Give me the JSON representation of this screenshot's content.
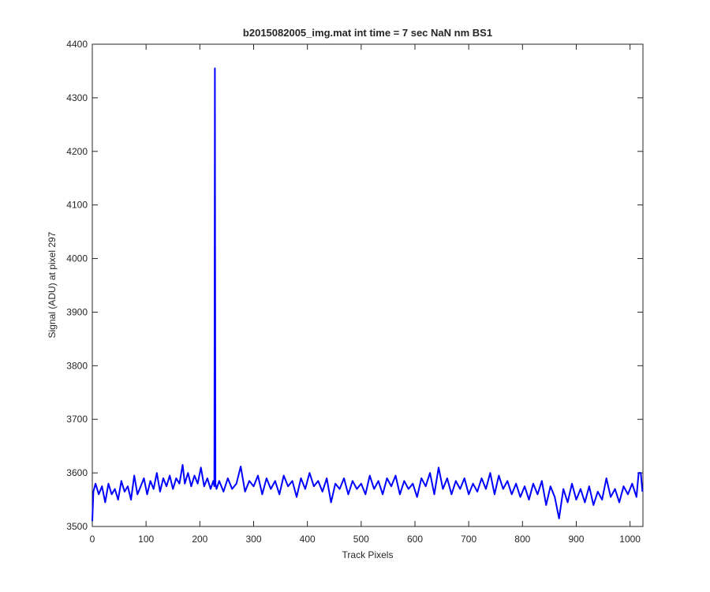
{
  "chart_data": {
    "type": "line",
    "title": "b2015082005_img.mat int time = 7 sec  NaN nm BS1",
    "x_label": "Track Pixels",
    "y_label": "Signal (ADU) at pixel 297",
    "x": [
      0,
      2,
      6,
      12,
      18,
      24,
      30,
      36,
      42,
      48,
      54,
      60,
      66,
      72,
      78,
      84,
      90,
      96,
      102,
      108,
      114,
      120,
      126,
      132,
      138,
      144,
      150,
      156,
      162,
      168,
      172,
      178,
      184,
      190,
      196,
      202,
      208,
      214,
      220,
      225,
      227,
      228,
      229,
      231,
      236,
      244,
      252,
      260,
      268,
      276,
      284,
      292,
      300,
      308,
      316,
      324,
      332,
      340,
      348,
      356,
      364,
      372,
      380,
      388,
      396,
      404,
      412,
      420,
      428,
      436,
      444,
      452,
      460,
      468,
      476,
      484,
      492,
      500,
      508,
      516,
      524,
      532,
      540,
      548,
      556,
      564,
      572,
      580,
      588,
      596,
      604,
      612,
      620,
      628,
      636,
      644,
      652,
      660,
      668,
      676,
      684,
      692,
      700,
      708,
      716,
      724,
      732,
      740,
      748,
      756,
      764,
      772,
      780,
      788,
      796,
      804,
      812,
      820,
      828,
      836,
      844,
      852,
      860,
      868,
      876,
      884,
      892,
      900,
      908,
      916,
      924,
      932,
      940,
      948,
      956,
      964,
      972,
      980,
      988,
      996,
      1004,
      1012,
      1016,
      1020,
      1023
    ],
    "series": [
      {
        "color": "#0000ff",
        "values": [
          3510,
          3565,
          3580,
          3560,
          3575,
          3545,
          3580,
          3560,
          3570,
          3550,
          3585,
          3565,
          3575,
          3550,
          3595,
          3560,
          3575,
          3590,
          3560,
          3585,
          3570,
          3600,
          3565,
          3590,
          3575,
          3595,
          3570,
          3590,
          3580,
          3615,
          3580,
          3600,
          3575,
          3595,
          3580,
          3610,
          3575,
          3590,
          3570,
          3585,
          3575,
          4355,
          3580,
          3570,
          3585,
          3565,
          3590,
          3570,
          3580,
          3612,
          3565,
          3585,
          3575,
          3595,
          3560,
          3590,
          3570,
          3585,
          3560,
          3595,
          3575,
          3585,
          3555,
          3590,
          3570,
          3600,
          3575,
          3585,
          3565,
          3590,
          3545,
          3580,
          3570,
          3590,
          3560,
          3585,
          3570,
          3580,
          3560,
          3595,
          3570,
          3585,
          3560,
          3590,
          3575,
          3595,
          3560,
          3585,
          3570,
          3580,
          3555,
          3590,
          3575,
          3600,
          3560,
          3610,
          3570,
          3590,
          3560,
          3585,
          3570,
          3590,
          3560,
          3580,
          3565,
          3590,
          3570,
          3600,
          3560,
          3595,
          3570,
          3585,
          3560,
          3580,
          3555,
          3575,
          3550,
          3580,
          3560,
          3585,
          3540,
          3575,
          3555,
          3515,
          3570,
          3545,
          3580,
          3550,
          3570,
          3545,
          3575,
          3540,
          3565,
          3550,
          3590,
          3555,
          3570,
          3545,
          3575,
          3560,
          3580,
          3555,
          3600,
          3600,
          3565
        ]
      }
    ],
    "xlim": [
      0,
      1024
    ],
    "xticks": [
      0,
      100,
      200,
      300,
      400,
      500,
      600,
      700,
      800,
      900,
      1000
    ],
    "ylim": [
      3500,
      4400
    ],
    "yticks": [
      3500,
      3600,
      3700,
      3800,
      3900,
      4000,
      4100,
      4200,
      4300,
      4400
    ],
    "grid": false
  }
}
